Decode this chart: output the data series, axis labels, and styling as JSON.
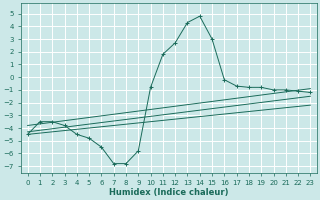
{
  "bg_color": "#cce8e8",
  "grid_color": "#aad4d4",
  "line_color": "#1a6b5a",
  "xlabel": "Humidex (Indice chaleur)",
  "xlim": [
    -0.5,
    23.5
  ],
  "ylim": [
    -7.5,
    5.8
  ],
  "xticks": [
    0,
    1,
    2,
    3,
    4,
    5,
    6,
    7,
    8,
    9,
    10,
    11,
    12,
    13,
    14,
    15,
    16,
    17,
    18,
    19,
    20,
    21,
    22,
    23
  ],
  "yticks": [
    -7,
    -6,
    -5,
    -4,
    -3,
    -2,
    -1,
    0,
    1,
    2,
    3,
    4,
    5
  ],
  "main_curve_x": [
    0,
    1,
    2,
    3,
    4,
    5,
    6,
    7,
    8,
    9,
    10,
    11,
    12,
    13,
    14,
    15,
    16,
    17,
    18,
    19,
    20,
    21,
    22,
    23
  ],
  "main_curve_y": [
    -4.5,
    -3.5,
    -3.5,
    -3.8,
    -4.5,
    -4.8,
    -5.5,
    -6.8,
    -6.8,
    -5.8,
    -0.8,
    1.8,
    2.7,
    4.3,
    4.8,
    3.0,
    -0.2,
    -0.7,
    -0.8,
    -0.8,
    -1.0,
    -1.0,
    -1.1,
    -1.2
  ],
  "line1_x": [
    0,
    23
  ],
  "line1_y": [
    -3.8,
    -0.9
  ],
  "line2_x": [
    0,
    23
  ],
  "line2_y": [
    -4.3,
    -1.5
  ],
  "line3_x": [
    0,
    23
  ],
  "line3_y": [
    -4.5,
    -2.2
  ],
  "title_fontsize": 5.5,
  "tick_fontsize": 5.0,
  "xlabel_fontsize": 6.0
}
